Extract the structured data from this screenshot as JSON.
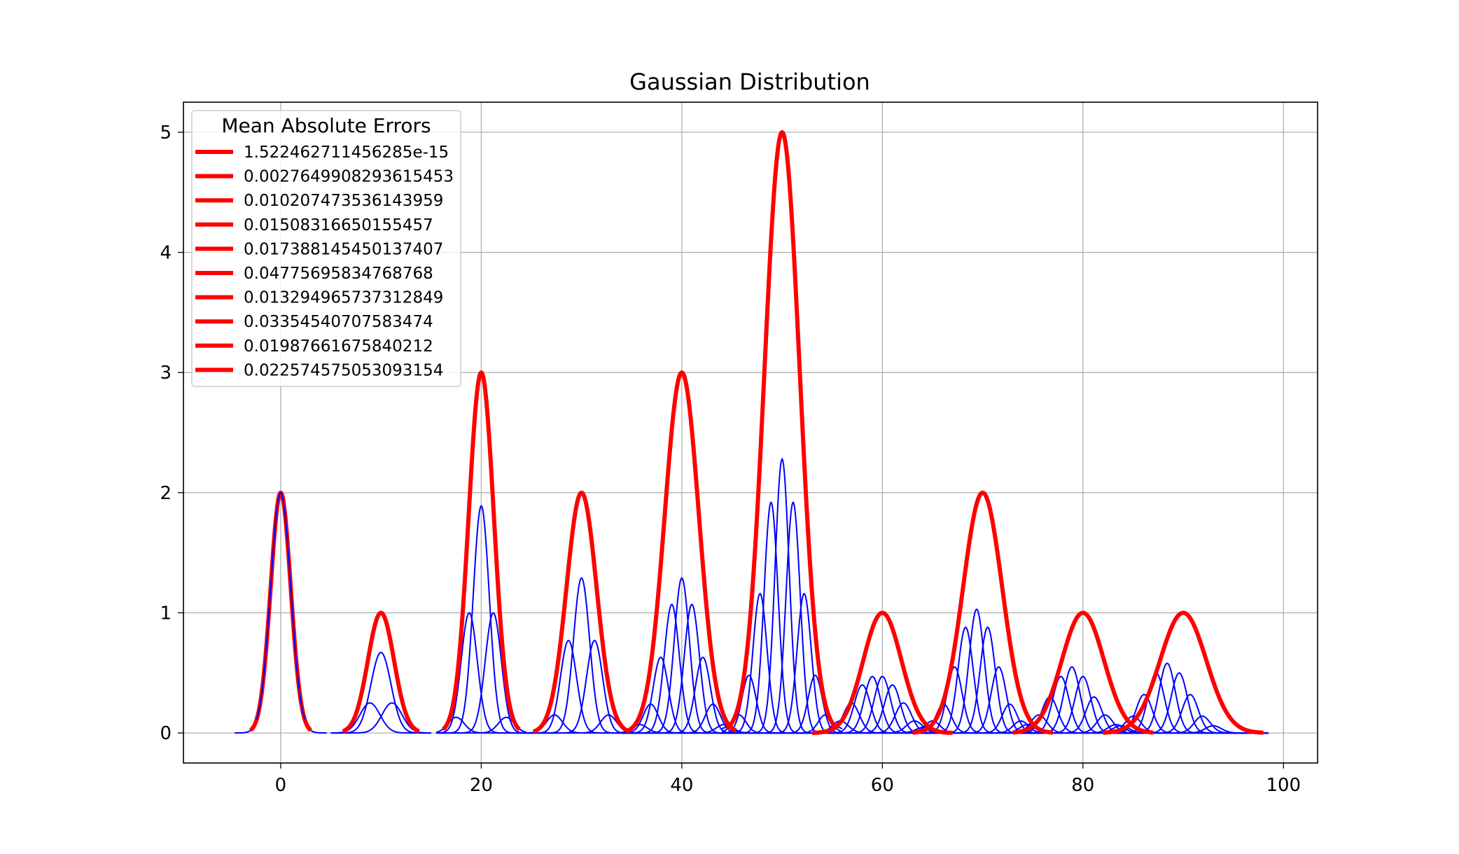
{
  "chart_data": {
    "type": "line",
    "title": "Gaussian Distribution",
    "xlabel": "",
    "ylabel": "",
    "xlim": [
      -9.7,
      103.4
    ],
    "ylim": [
      -0.25,
      5.25
    ],
    "x_ticks": [
      0,
      20,
      40,
      60,
      80,
      100
    ],
    "y_ticks": [
      0,
      1,
      2,
      3,
      4,
      5
    ],
    "grid": true,
    "legend_title": "Mean Absolute Errors",
    "legend_placement": "top-left",
    "colors": {
      "target": "#ff0000",
      "components": "#0000ff",
      "grid": "#b0b0b0"
    },
    "series": [
      {
        "name": "1.522462711456285e-15",
        "mean": 0,
        "amplitude": 2,
        "sigma": 1,
        "x_range": [
          -3,
          3
        ],
        "components": [
          {
            "mean": 0,
            "amplitude": 2,
            "sigma": 1
          }
        ],
        "component_x_range": [
          -4.6,
          4.6
        ]
      },
      {
        "name": "0.0027649908293615453",
        "mean": 10,
        "amplitude": 1,
        "sigma": 1.3,
        "x_range": [
          6.2,
          13.8
        ],
        "components": [
          {
            "mean": 8.9,
            "amplitude": 0.25,
            "sigma": 1.0
          },
          {
            "mean": 10,
            "amplitude": 0.67,
            "sigma": 1.0
          },
          {
            "mean": 11.1,
            "amplitude": 0.25,
            "sigma": 1.0
          }
        ],
        "component_x_range": [
          5.0,
          15.0
        ]
      },
      {
        "name": "0.010207473536143959",
        "mean": 20,
        "amplitude": 3,
        "sigma": 1.25,
        "x_range": [
          16.2,
          23.8
        ],
        "components": [
          {
            "mean": 17.5,
            "amplitude": 0.13,
            "sigma": 0.8
          },
          {
            "mean": 18.8,
            "amplitude": 1.0,
            "sigma": 0.8
          },
          {
            "mean": 20,
            "amplitude": 1.89,
            "sigma": 0.8
          },
          {
            "mean": 21.2,
            "amplitude": 1.0,
            "sigma": 0.8
          },
          {
            "mean": 22.5,
            "amplitude": 0.13,
            "sigma": 0.8
          }
        ],
        "component_x_range": [
          15.5,
          24.5
        ]
      },
      {
        "name": "0.01508316650155457",
        "mean": 30,
        "amplitude": 2,
        "sigma": 1.5,
        "x_range": [
          25.2,
          34.8
        ],
        "components": [
          {
            "mean": 27.3,
            "amplitude": 0.15,
            "sigma": 0.8
          },
          {
            "mean": 28.7,
            "amplitude": 0.77,
            "sigma": 0.8
          },
          {
            "mean": 30,
            "amplitude": 1.29,
            "sigma": 0.8
          },
          {
            "mean": 31.3,
            "amplitude": 0.77,
            "sigma": 0.8
          },
          {
            "mean": 32.7,
            "amplitude": 0.15,
            "sigma": 0.8
          }
        ],
        "component_x_range": [
          24.5,
          35.5
        ]
      },
      {
        "name": "0.017388145450137407",
        "mean": 40,
        "amplitude": 3,
        "sigma": 1.7,
        "x_range": [
          34.6,
          45.4
        ],
        "components": [
          {
            "mean": 35.8,
            "amplitude": 0.07,
            "sigma": 0.75
          },
          {
            "mean": 36.9,
            "amplitude": 0.24,
            "sigma": 0.75
          },
          {
            "mean": 37.9,
            "amplitude": 0.63,
            "sigma": 0.75
          },
          {
            "mean": 39.0,
            "amplitude": 1.07,
            "sigma": 0.75
          },
          {
            "mean": 40,
            "amplitude": 1.29,
            "sigma": 0.75
          },
          {
            "mean": 41.0,
            "amplitude": 1.07,
            "sigma": 0.75
          },
          {
            "mean": 42.1,
            "amplitude": 0.63,
            "sigma": 0.75
          },
          {
            "mean": 43.1,
            "amplitude": 0.24,
            "sigma": 0.75
          },
          {
            "mean": 44.2,
            "amplitude": 0.07,
            "sigma": 0.75
          }
        ],
        "component_x_range": [
          34.0,
          46.0
        ]
      },
      {
        "name": "0.04775695834768768",
        "mean": 50,
        "amplitude": 5,
        "sigma": 1.75,
        "x_range": [
          44.5,
          55.5
        ],
        "components": [
          {
            "mean": 44.6,
            "amplitude": 0.05,
            "sigma": 0.7
          },
          {
            "mean": 45.7,
            "amplitude": 0.15,
            "sigma": 0.7
          },
          {
            "mean": 46.7,
            "amplitude": 0.48,
            "sigma": 0.7
          },
          {
            "mean": 47.8,
            "amplitude": 1.16,
            "sigma": 0.7
          },
          {
            "mean": 48.9,
            "amplitude": 1.92,
            "sigma": 0.7
          },
          {
            "mean": 50,
            "amplitude": 2.28,
            "sigma": 0.7
          },
          {
            "mean": 51.1,
            "amplitude": 1.92,
            "sigma": 0.7
          },
          {
            "mean": 52.2,
            "amplitude": 1.16,
            "sigma": 0.7
          },
          {
            "mean": 53.3,
            "amplitude": 0.48,
            "sigma": 0.7
          },
          {
            "mean": 54.3,
            "amplitude": 0.15,
            "sigma": 0.7
          },
          {
            "mean": 55.4,
            "amplitude": 0.05,
            "sigma": 0.7
          }
        ],
        "component_x_range": [
          44.0,
          56.0
        ]
      },
      {
        "name": "0.013294965737312849",
        "mean": 60,
        "amplitude": 1,
        "sigma": 1.9,
        "x_range": [
          53.0,
          67.0
        ],
        "components": [
          {
            "mean": 55.8,
            "amplitude": 0.1,
            "sigma": 0.8
          },
          {
            "mean": 56.9,
            "amplitude": 0.25,
            "sigma": 0.8
          },
          {
            "mean": 58.0,
            "amplitude": 0.4,
            "sigma": 0.8
          },
          {
            "mean": 59.0,
            "amplitude": 0.47,
            "sigma": 0.8
          },
          {
            "mean": 60.0,
            "amplitude": 0.47,
            "sigma": 0.8
          },
          {
            "mean": 61.0,
            "amplitude": 0.4,
            "sigma": 0.8
          },
          {
            "mean": 62.1,
            "amplitude": 0.25,
            "sigma": 0.8
          },
          {
            "mean": 63.2,
            "amplitude": 0.1,
            "sigma": 0.8
          },
          {
            "mean": 64.2,
            "amplitude": 0.05,
            "sigma": 0.8
          }
        ],
        "component_x_range": [
          53.0,
          67.0
        ]
      },
      {
        "name": "0.03354540707583474",
        "mean": 70,
        "amplitude": 2,
        "sigma": 1.95,
        "x_range": [
          63.0,
          77.0
        ],
        "components": [
          {
            "mean": 65.0,
            "amplitude": 0.1,
            "sigma": 0.75
          },
          {
            "mean": 66.1,
            "amplitude": 0.24,
            "sigma": 0.75
          },
          {
            "mean": 67.2,
            "amplitude": 0.55,
            "sigma": 0.75
          },
          {
            "mean": 68.3,
            "amplitude": 0.88,
            "sigma": 0.75
          },
          {
            "mean": 69.4,
            "amplitude": 1.03,
            "sigma": 0.75
          },
          {
            "mean": 70.5,
            "amplitude": 0.88,
            "sigma": 0.75
          },
          {
            "mean": 71.6,
            "amplitude": 0.55,
            "sigma": 0.75
          },
          {
            "mean": 72.7,
            "amplitude": 0.24,
            "sigma": 0.75
          },
          {
            "mean": 73.8,
            "amplitude": 0.1,
            "sigma": 0.75
          }
        ],
        "component_x_range": [
          63.0,
          77.0
        ]
      },
      {
        "name": "0.01987661675840212",
        "mean": 80,
        "amplitude": 1,
        "sigma": 2.1,
        "x_range": [
          73.0,
          87.0
        ],
        "components": [
          {
            "mean": 74.5,
            "amplitude": 0.07,
            "sigma": 0.8
          },
          {
            "mean": 75.6,
            "amplitude": 0.15,
            "sigma": 0.8
          },
          {
            "mean": 76.7,
            "amplitude": 0.3,
            "sigma": 0.8
          },
          {
            "mean": 77.8,
            "amplitude": 0.47,
            "sigma": 0.8
          },
          {
            "mean": 78.9,
            "amplitude": 0.55,
            "sigma": 0.8
          },
          {
            "mean": 80.0,
            "amplitude": 0.47,
            "sigma": 0.8
          },
          {
            "mean": 81.1,
            "amplitude": 0.3,
            "sigma": 0.8
          },
          {
            "mean": 82.2,
            "amplitude": 0.15,
            "sigma": 0.8
          },
          {
            "mean": 83.3,
            "amplitude": 0.07,
            "sigma": 0.8
          }
        ],
        "component_x_range": [
          73.0,
          87.0
        ]
      },
      {
        "name": "0.022574575053093154",
        "mean": 90,
        "amplitude": 1,
        "sigma": 2.3,
        "x_range": [
          82.0,
          98.0
        ],
        "components": [
          {
            "mean": 83.8,
            "amplitude": 0.06,
            "sigma": 0.8
          },
          {
            "mean": 85.0,
            "amplitude": 0.14,
            "sigma": 0.8
          },
          {
            "mean": 86.1,
            "amplitude": 0.32,
            "sigma": 0.8
          },
          {
            "mean": 87.3,
            "amplitude": 0.5,
            "sigma": 0.8
          },
          {
            "mean": 88.4,
            "amplitude": 0.58,
            "sigma": 0.8
          },
          {
            "mean": 89.6,
            "amplitude": 0.5,
            "sigma": 0.8
          },
          {
            "mean": 90.7,
            "amplitude": 0.32,
            "sigma": 0.8
          },
          {
            "mean": 91.9,
            "amplitude": 0.14,
            "sigma": 0.8
          },
          {
            "mean": 93.0,
            "amplitude": 0.06,
            "sigma": 0.8
          }
        ],
        "component_x_range": [
          82.0,
          98.5
        ]
      }
    ]
  }
}
